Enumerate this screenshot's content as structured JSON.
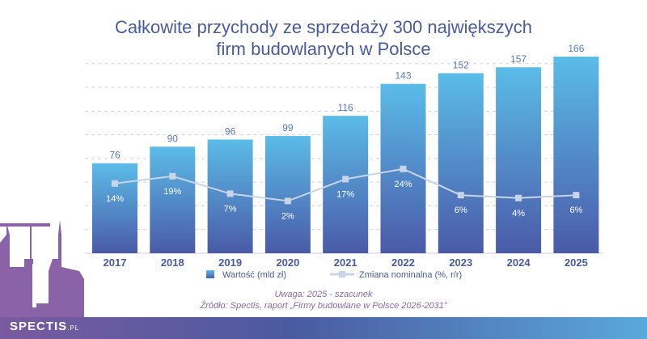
{
  "chart_data": {
    "type": "bar",
    "title_line1": "Całkowite przychody ze sprzedaży 300 największych",
    "title_line2": "firm budowlanych w Polsce",
    "categories": [
      "2017",
      "2018",
      "2019",
      "2020",
      "2021",
      "2022",
      "2023",
      "2024",
      "2025"
    ],
    "series": [
      {
        "name": "Wartość (mld zł)",
        "type": "bar",
        "values": [
          76,
          90,
          96,
          99,
          116,
          143,
          152,
          157,
          166
        ]
      },
      {
        "name": "Zmiana nominalna (%, r/r)",
        "type": "line",
        "values": [
          14,
          19,
          7,
          2,
          17,
          24,
          6,
          4,
          6
        ]
      }
    ],
    "ylim": [
      0,
      170
    ],
    "grid": true,
    "legend": "bottom",
    "colors": {
      "bar_top": "#5bbce8",
      "bar_bottom": "#4a5aa8",
      "line": "#c8d4e8",
      "text": "#4a5aa0"
    }
  },
  "notes": {
    "remark": "Uwaga: 2025 - szacunek",
    "source": "Źródło: Spectis, raport „Firmy budowlane w Polsce 2026-2031”"
  },
  "logo": {
    "name": "SPECTIS",
    "suffix": ".PL"
  }
}
